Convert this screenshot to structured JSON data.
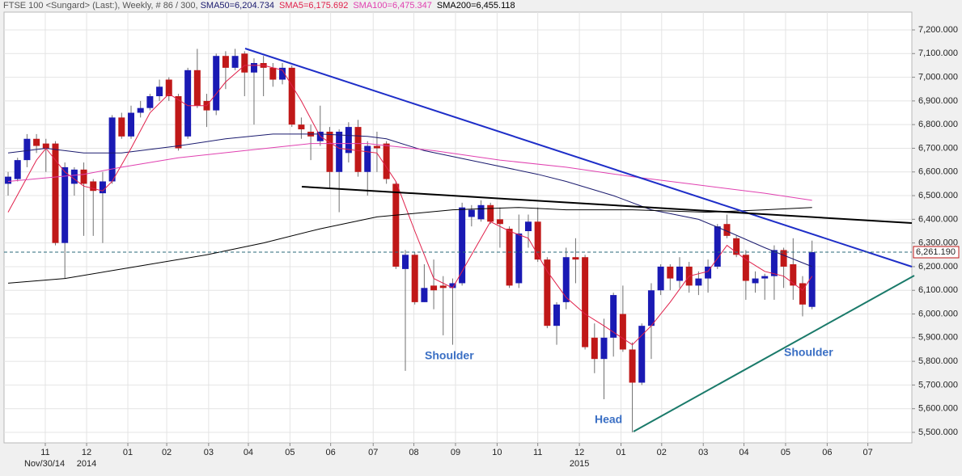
{
  "chart_data": {
    "type": "candlestick",
    "title": "FTSE 100 <Sungard> (Last:), Weekly, # 86 / 300, ",
    "up_color": "#1a1ab4",
    "down_color": "#c01818",
    "open": [
      6550,
      6570,
      6650,
      6740,
      6720,
      6720,
      6300,
      6550,
      6610,
      6560,
      6510,
      6560,
      6830,
      6750,
      6850,
      6870,
      6920,
      6990,
      6920,
      6750,
      7030,
      6900,
      6860,
      7090,
      7040,
      7100,
      7020,
      7060,
      7040,
      6990,
      7040,
      6800,
      6770,
      6730,
      6770,
      6600,
      6680,
      6790,
      6600,
      6710,
      6720,
      6550,
      6190,
      6250,
      6050,
      6120,
      6120,
      6110,
      6130,
      6410,
      6400,
      6460,
      6400,
      6360,
      6130,
      6350,
      6390,
      6230,
      5950,
      6050,
      6240,
      6240,
      5900,
      5810,
      5900,
      6000,
      5850,
      5710,
      5950,
      6100,
      6200,
      6140,
      6200,
      6120,
      6150,
      6200,
      6380,
      6320,
      6250,
      6130,
      6150,
      6160,
      6270,
      6210,
      6130,
      6030
    ],
    "high": [
      6600,
      6660,
      6760,
      6760,
      6740,
      6730,
      6640,
      6620,
      6640,
      6570,
      6600,
      6840,
      6850,
      6880,
      6900,
      6930,
      6990,
      7000,
      6930,
      7040,
      7120,
      6930,
      7100,
      7110,
      7120,
      7110,
      7080,
      7090,
      7060,
      7060,
      7050,
      6830,
      6800,
      6880,
      6790,
      6780,
      6810,
      6820,
      6730,
      6770,
      6730,
      6560,
      6270,
      6260,
      6210,
      6230,
      6160,
      6150,
      6470,
      6460,
      6480,
      6470,
      6450,
      6370,
      6420,
      6420,
      6450,
      6240,
      6050,
      6280,
      6320,
      6250,
      5960,
      5980,
      6090,
      6120,
      5880,
      5960,
      6130,
      6210,
      6210,
      6240,
      6220,
      6180,
      6230,
      6380,
      6420,
      6330,
      6270,
      6180,
      6170,
      6290,
      6280,
      6320,
      6160,
      6310
    ],
    "low": [
      6500,
      6560,
      6620,
      6680,
      6600,
      6290,
      6150,
      6500,
      6330,
      6330,
      6300,
      6550,
      6740,
      6740,
      6830,
      6860,
      6900,
      6900,
      6690,
      6740,
      6870,
      6790,
      6840,
      6950,
      7030,
      6920,
      6800,
      6920,
      6960,
      6970,
      6790,
      6740,
      6650,
      6710,
      6530,
      6430,
      6640,
      6580,
      6500,
      6600,
      6550,
      6190,
      5760,
      6040,
      6050,
      6020,
      5910,
      5870,
      6120,
      6370,
      6390,
      6380,
      6280,
      6110,
      6110,
      6280,
      6220,
      5940,
      5870,
      6020,
      6130,
      5850,
      5750,
      5640,
      5820,
      5840,
      5500,
      5700,
      5810,
      6080,
      6100,
      6110,
      6090,
      6080,
      6090,
      6190,
      6320,
      6240,
      6060,
      6090,
      6060,
      6060,
      6110,
      6060,
      5990,
      6020
    ],
    "close": [
      6580,
      6650,
      6740,
      6710,
      6700,
      6300,
      6620,
      6610,
      6550,
      6520,
      6560,
      6830,
      6750,
      6850,
      6870,
      6920,
      6960,
      6920,
      6700,
      7030,
      6880,
      6860,
      7090,
      7040,
      7090,
      7020,
      7060,
      7040,
      6990,
      7040,
      6800,
      6780,
      6750,
      6770,
      6600,
      6770,
      6790,
      6600,
      6710,
      6700,
      6570,
      6200,
      6250,
      6050,
      6110,
      6100,
      6110,
      6130,
      6450,
      6440,
      6460,
      6390,
      6380,
      6120,
      6340,
      6390,
      6230,
      5950,
      6040,
      6240,
      6230,
      5860,
      5810,
      5900,
      6080,
      5850,
      5710,
      5950,
      6100,
      6200,
      6150,
      6200,
      6120,
      6150,
      6200,
      6370,
      6330,
      6250,
      6140,
      6150,
      6160,
      6270,
      6200,
      6120,
      6040,
      6261.19
    ],
    "series": [
      {
        "name": "SMA50=6,204.734",
        "color": "#1a1a6e",
        "x": [
          0,
          4,
          8,
          12,
          18,
          23,
          28,
          33,
          38,
          40,
          44,
          50,
          56,
          59,
          64,
          68,
          73,
          76,
          80,
          85
        ],
        "values": [
          6680,
          6700,
          6680,
          6680,
          6710,
          6740,
          6760,
          6760,
          6750,
          6740,
          6690,
          6640,
          6590,
          6560,
          6500,
          6440,
          6400,
          6350,
          6280,
          6200
        ]
      },
      {
        "name": "SMA5=6,175.692",
        "color": "#e0204a",
        "x": [
          0,
          3,
          4,
          6,
          8,
          10,
          11,
          13,
          15,
          17,
          19,
          21,
          23,
          25,
          27,
          29,
          31,
          33,
          35,
          37,
          39,
          41,
          43,
          45,
          47,
          49,
          51,
          53,
          55,
          57,
          59,
          61,
          63,
          66,
          68,
          70,
          72,
          74,
          76,
          78,
          80,
          82,
          84,
          85
        ],
        "values": [
          6430,
          6650,
          6700,
          6600,
          6540,
          6520,
          6560,
          6700,
          6850,
          6930,
          6880,
          6880,
          6980,
          7050,
          7050,
          7030,
          6900,
          6750,
          6700,
          6690,
          6680,
          6560,
          6350,
          6150,
          6110,
          6250,
          6390,
          6350,
          6320,
          6180,
          6070,
          6000,
          5950,
          5870,
          5950,
          6050,
          6160,
          6180,
          6290,
          6230,
          6180,
          6160,
          6100,
          6160
        ]
      },
      {
        "name": "SMA100=6,475.347",
        "color": "#e040b0",
        "x": [
          0,
          8,
          12,
          18,
          25,
          32,
          38,
          45,
          52,
          59,
          66,
          72,
          80,
          85
        ],
        "values": [
          6560,
          6590,
          6620,
          6660,
          6690,
          6720,
          6720,
          6690,
          6650,
          6620,
          6580,
          6550,
          6510,
          6480
        ]
      },
      {
        "name": "SMA200=6,455.118",
        "color": "#000000",
        "x": [
          0,
          6,
          12,
          21,
          27,
          33,
          39,
          47,
          54,
          59,
          66,
          74,
          80,
          85
        ],
        "values": [
          6130,
          6150,
          6190,
          6250,
          6300,
          6360,
          6410,
          6440,
          6450,
          6440,
          6440,
          6430,
          6440,
          6450
        ]
      }
    ],
    "last": {
      "value": 6261.19,
      "label": "6,261.190"
    },
    "xlim": [
      -0.43,
      95.55
    ],
    "ylim": [
      5500,
      7200
    ],
    "yticks": [
      {
        "value": 5500,
        "label": "5,500.000"
      },
      {
        "value": 5600,
        "label": "5,600.000"
      },
      {
        "value": 5700,
        "label": "5,700.000"
      },
      {
        "value": 5800,
        "label": "5,800.000"
      },
      {
        "value": 5900,
        "label": "5,900.000"
      },
      {
        "value": 6000,
        "label": "6,000.000"
      },
      {
        "value": 6100,
        "label": "6,100.000"
      },
      {
        "value": 6200,
        "label": "6,200.000"
      },
      {
        "value": 6300,
        "label": "6,300.000"
      },
      {
        "value": 6400,
        "label": "6,400.000"
      },
      {
        "value": 6500,
        "label": "6,500.000"
      },
      {
        "value": 6600,
        "label": "6,600.000"
      },
      {
        "value": 6700,
        "label": "6,700.000"
      },
      {
        "value": 6800,
        "label": "6,800.000"
      },
      {
        "value": 6900,
        "label": "6,900.000"
      },
      {
        "value": 7000,
        "label": "7,000.000"
      },
      {
        "value": 7100,
        "label": "7,100.000"
      },
      {
        "value": 7200,
        "label": "7,200.000"
      }
    ],
    "xticks": [
      {
        "value": 3.93,
        "label": "11"
      },
      {
        "value": 8.3,
        "label": "12"
      },
      {
        "value": 12.66,
        "label": "01"
      },
      {
        "value": 16.77,
        "label": "02"
      },
      {
        "value": 21.2,
        "label": "03"
      },
      {
        "value": 25.4,
        "label": "04"
      },
      {
        "value": 29.8,
        "label": "05"
      },
      {
        "value": 34.1,
        "label": "06"
      },
      {
        "value": 38.6,
        "label": "07"
      },
      {
        "value": 42.9,
        "label": "08"
      },
      {
        "value": 47.3,
        "label": "09"
      },
      {
        "value": 51.7,
        "label": "10"
      },
      {
        "value": 56.0,
        "label": "11"
      },
      {
        "value": 60.4,
        "label": "12"
      },
      {
        "value": 64.8,
        "label": "01"
      },
      {
        "value": 69.1,
        "label": "02"
      },
      {
        "value": 73.5,
        "label": "03"
      },
      {
        "value": 77.8,
        "label": "04"
      },
      {
        "value": 82.2,
        "label": "05"
      },
      {
        "value": 86.6,
        "label": "06"
      },
      {
        "value": 90.9,
        "label": "07"
      }
    ],
    "xticks2": [
      {
        "value": 3.85,
        "label": "Nov/30/14"
      },
      {
        "value": 8.3,
        "label": "2014"
      },
      {
        "value": 60.4,
        "label": "2015"
      }
    ],
    "annotations": [
      "Shoulder",
      "Head",
      "Shoulder"
    ],
    "grid": true
  }
}
